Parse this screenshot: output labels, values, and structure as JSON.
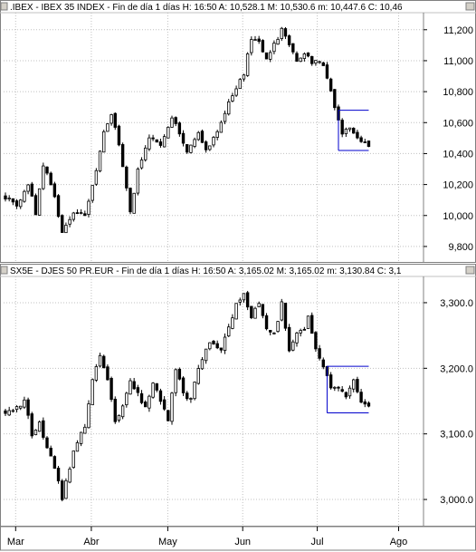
{
  "colors": {
    "up": "#ffffff",
    "down": "#000000",
    "wick": "#000000",
    "grid": "#c0c0c0",
    "box": "#0000cc"
  },
  "x_axis_labels": [
    "Mar",
    "Abr",
    "May",
    "Jun",
    "Jul",
    "Ago"
  ],
  "chart_data": [
    {
      "type": "candlestick",
      "header": ".IBEX - IBEX 35 INDEX - Fin de día 1 días  H: 16:50  A: 10,528.1  M: 10,530.6  m: 10,447.6  C: 10,46",
      "y_tick_labels": [
        "11,200",
        "11,000",
        "10,800",
        "10,600",
        "10,400",
        "10,200",
        "10,000",
        "9,800"
      ],
      "ylim": [
        9700,
        11310
      ],
      "grid": true,
      "x_month_positions": {
        "Mar": 2.7,
        "Abr": 22.7,
        "May": 42.9,
        "Jun": 62.7,
        "Jul": 82.4,
        "Ago": 103.9
      },
      "box": {
        "x_start": 88,
        "x_end": 96,
        "high": 10680,
        "low": 10420
      },
      "anchors": [
        [
          0,
          10120
        ],
        [
          3,
          10060
        ],
        [
          6,
          10200
        ],
        [
          8,
          10020
        ],
        [
          10,
          10330
        ],
        [
          13,
          10120
        ],
        [
          15,
          9880
        ],
        [
          18,
          10010
        ],
        [
          21,
          10010
        ],
        [
          24,
          10300
        ],
        [
          26,
          10540
        ],
        [
          28,
          10660
        ],
        [
          30,
          10460
        ],
        [
          33,
          10020
        ],
        [
          35,
          10290
        ],
        [
          38,
          10500
        ],
        [
          41,
          10460
        ],
        [
          44,
          10640
        ],
        [
          46,
          10540
        ],
        [
          48,
          10400
        ],
        [
          51,
          10550
        ],
        [
          53,
          10420
        ],
        [
          56,
          10540
        ],
        [
          59,
          10740
        ],
        [
          61,
          10820
        ],
        [
          63,
          10920
        ],
        [
          65,
          11140
        ],
        [
          67,
          11120
        ],
        [
          69,
          11020
        ],
        [
          71,
          11100
        ],
        [
          72,
          11140
        ],
        [
          73,
          11200
        ],
        [
          75,
          11100
        ],
        [
          77,
          11000
        ],
        [
          79,
          11060
        ],
        [
          81,
          10980
        ],
        [
          83,
          11010
        ],
        [
          85,
          10900
        ],
        [
          86,
          10800
        ],
        [
          87,
          10710
        ],
        [
          89,
          10520
        ],
        [
          91,
          10580
        ],
        [
          93,
          10490
        ],
        [
          95,
          10470
        ],
        [
          96,
          10460
        ]
      ],
      "volatility": 0.55
    },
    {
      "type": "candlestick",
      "header": "SX5E - DJES 50 PR.EUR - Fin de día 1 días  H: 16:50  A: 3,165.02  M: 3,165.02  m: 3,130.84  C: 3,1",
      "y_tick_labels": [
        "3,300.0",
        "3,200.0",
        "3,100.0",
        "3,000.0"
      ],
      "ylim": [
        2960,
        3340
      ],
      "grid": true,
      "x_month_positions": {
        "Mar": 2.7,
        "Abr": 22.7,
        "May": 42.9,
        "Jun": 62.7,
        "Jul": 82.4,
        "Ago": 103.9
      },
      "box": {
        "x_start": 85,
        "x_end": 96,
        "high": 3203,
        "low": 3132
      },
      "anchors": [
        [
          0,
          3135
        ],
        [
          3,
          3140
        ],
        [
          5,
          3150
        ],
        [
          7,
          3100
        ],
        [
          9,
          3115
        ],
        [
          11,
          3080
        ],
        [
          13,
          3050
        ],
        [
          15,
          3000
        ],
        [
          17,
          3050
        ],
        [
          19,
          3090
        ],
        [
          21,
          3110
        ],
        [
          23,
          3180
        ],
        [
          25,
          3220
        ],
        [
          27,
          3180
        ],
        [
          29,
          3120
        ],
        [
          31,
          3140
        ],
        [
          33,
          3180
        ],
        [
          35,
          3160
        ],
        [
          37,
          3140
        ],
        [
          39,
          3180
        ],
        [
          41,
          3150
        ],
        [
          43,
          3120
        ],
        [
          45,
          3200
        ],
        [
          47,
          3160
        ],
        [
          49,
          3150
        ],
        [
          51,
          3200
        ],
        [
          53,
          3230
        ],
        [
          55,
          3240
        ],
        [
          57,
          3230
        ],
        [
          59,
          3260
        ],
        [
          61,
          3300
        ],
        [
          63,
          3310
        ],
        [
          65,
          3280
        ],
        [
          67,
          3300
        ],
        [
          69,
          3260
        ],
        [
          71,
          3250
        ],
        [
          73,
          3300
        ],
        [
          75,
          3230
        ],
        [
          77,
          3250
        ],
        [
          79,
          3260
        ],
        [
          80,
          3280
        ],
        [
          82,
          3230
        ],
        [
          84,
          3200
        ],
        [
          86,
          3170
        ],
        [
          88,
          3170
        ],
        [
          90,
          3160
        ],
        [
          92,
          3180
        ],
        [
          94,
          3150
        ],
        [
          96,
          3140
        ]
      ],
      "volatility": 0.6
    }
  ]
}
